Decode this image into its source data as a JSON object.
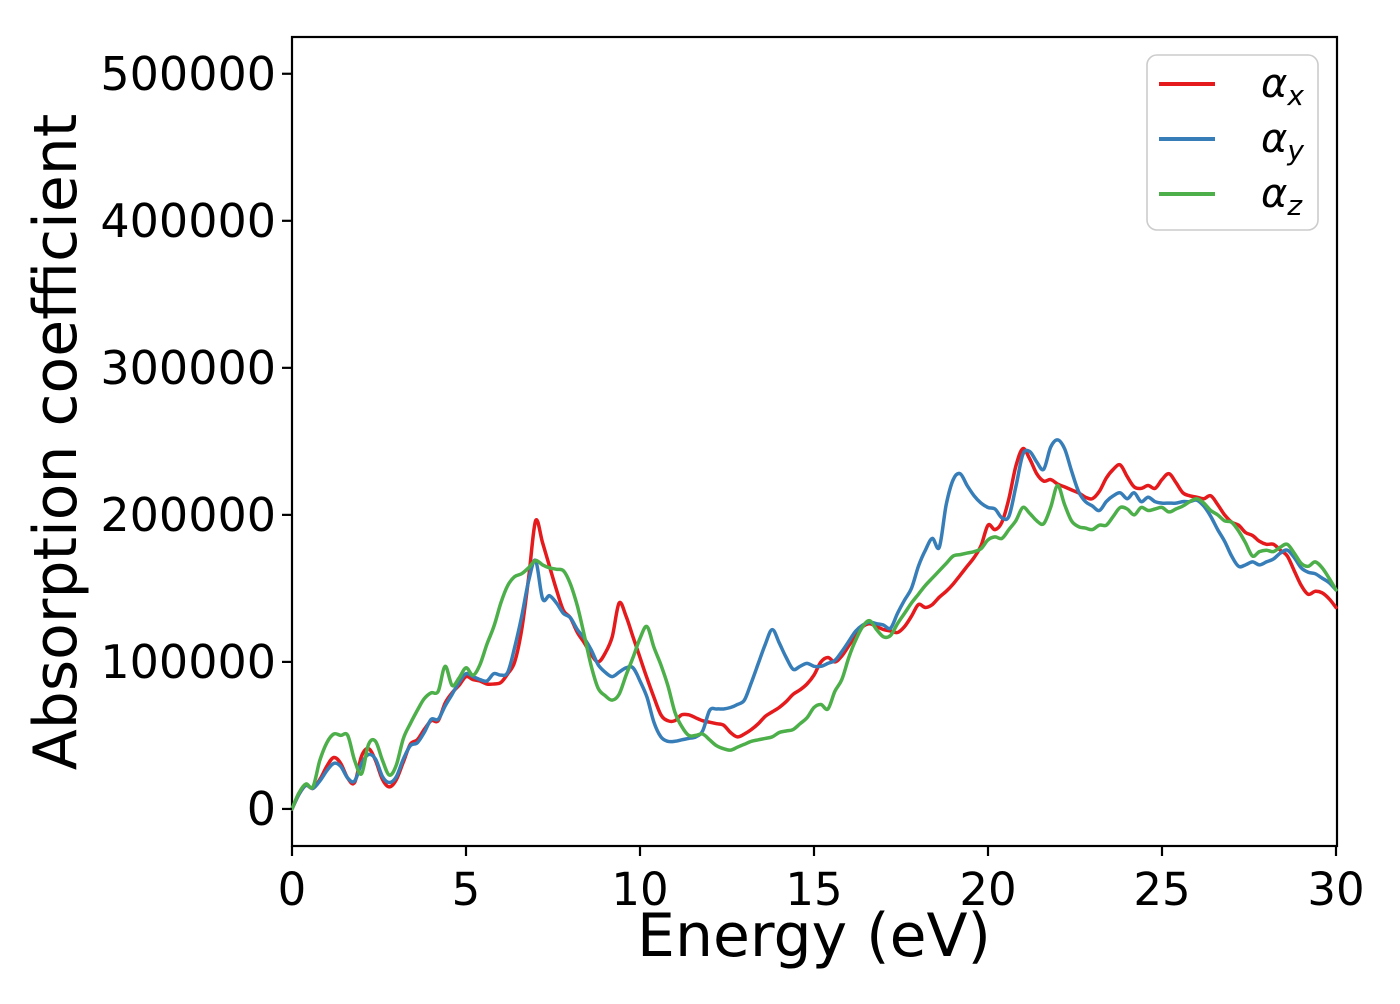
{
  "figure": {
    "background": "#ffffff",
    "spine_color": "#000000",
    "tick_color": "#000000",
    "text_color": "#000000"
  },
  "chart_data": {
    "type": "line",
    "title": "",
    "xlabel": "Energy (eV)",
    "ylabel": "Absorption coefficient",
    "xlim": [
      0,
      30
    ],
    "ylim": [
      -25200,
      525000
    ],
    "x_ticks": [
      0,
      5,
      10,
      15,
      20,
      25,
      30
    ],
    "y_ticks": [
      0,
      100000,
      200000,
      300000,
      400000,
      500000
    ],
    "grid": false,
    "legend": {
      "position": "upper right",
      "frame_color": "#cccccc",
      "entries": [
        {
          "symbol": "α",
          "sub": "x",
          "color": "#e41a1c"
        },
        {
          "symbol": "α",
          "sub": "y",
          "color": "#377eb8"
        },
        {
          "symbol": "α",
          "sub": "z",
          "color": "#4daf4a"
        }
      ]
    },
    "x_start": 0,
    "x_step": 0.2,
    "x": [
      0,
      0.2,
      0.4,
      0.6,
      0.8,
      1,
      1.2,
      1.4,
      1.6,
      1.8,
      2,
      2.2,
      2.4,
      2.6,
      2.8,
      3,
      3.2,
      3.4,
      3.6,
      3.8,
      4,
      4.2,
      4.4,
      4.6,
      4.8,
      5,
      5.2,
      5.4,
      5.6,
      5.8,
      6,
      6.2,
      6.4,
      6.6,
      6.8,
      7,
      7.2,
      7.4,
      7.6,
      7.8,
      8,
      8.2,
      8.4,
      8.6,
      8.8,
      9,
      9.2,
      9.4,
      9.6,
      9.8,
      10,
      10.2,
      10.4,
      10.6,
      10.8,
      11,
      11.2,
      11.4,
      11.6,
      11.8,
      12,
      12.2,
      12.4,
      12.6,
      12.8,
      13,
      13.2,
      13.4,
      13.6,
      13.8,
      14,
      14.2,
      14.4,
      14.6,
      14.8,
      15,
      15.2,
      15.4,
      15.6,
      15.8,
      16,
      16.2,
      16.4,
      16.6,
      16.8,
      17,
      17.2,
      17.4,
      17.6,
      17.8,
      18,
      18.2,
      18.4,
      18.6,
      18.8,
      19,
      19.2,
      19.4,
      19.6,
      19.8,
      20,
      20.2,
      20.4,
      20.6,
      20.8,
      21,
      21.2,
      21.4,
      21.6,
      21.8,
      22,
      22.2,
      22.4,
      22.6,
      22.8,
      23,
      23.2,
      23.4,
      23.6,
      23.8,
      24,
      24.2,
      24.4,
      24.6,
      24.8,
      25,
      25.2,
      25.4,
      25.6,
      25.8,
      26,
      26.2,
      26.4,
      26.6,
      26.8,
      27,
      27.2,
      27.4,
      27.6,
      27.8,
      28,
      28.2,
      28.4,
      28.6,
      28.8,
      29,
      29.2,
      29.4,
      29.6,
      29.8,
      30
    ],
    "series": [
      {
        "name": "alpha_x",
        "label": "αx",
        "color": "#e41a1c",
        "values": [
          0,
          10000,
          16000,
          14000,
          20000,
          29000,
          35000,
          31000,
          21000,
          18000,
          36000,
          41000,
          33000,
          20000,
          15000,
          20000,
          32000,
          44000,
          47000,
          54000,
          60000,
          60000,
          72000,
          79000,
          84000,
          90000,
          88000,
          87000,
          85000,
          85000,
          86000,
          92000,
          100000,
          122000,
          157000,
          196000,
          181000,
          165000,
          149000,
          135000,
          130000,
          120000,
          113000,
          105000,
          100000,
          106000,
          117000,
          140000,
          131000,
          117000,
          103000,
          89000,
          76000,
          64000,
          60000,
          60000,
          64000,
          64000,
          62000,
          60000,
          59000,
          58000,
          57000,
          52000,
          49000,
          51000,
          54000,
          58000,
          63000,
          66000,
          69000,
          73000,
          78000,
          81000,
          85000,
          91000,
          100000,
          103000,
          100000,
          104000,
          111000,
          118000,
          124000,
          126000,
          124000,
          122000,
          121000,
          120000,
          124000,
          131000,
          139000,
          137000,
          139000,
          144000,
          148000,
          153000,
          159000,
          165000,
          171000,
          179000,
          193000,
          190000,
          195000,
          211000,
          233000,
          245000,
          238000,
          228000,
          223000,
          224000,
          221000,
          219000,
          217000,
          215000,
          212000,
          211000,
          216000,
          225000,
          231000,
          234000,
          226000,
          219000,
          218000,
          220000,
          218000,
          224000,
          228000,
          222000,
          215000,
          213000,
          212000,
          211000,
          213000,
          207000,
          200000,
          195000,
          193000,
          188000,
          186000,
          182000,
          180000,
          180000,
          176000,
          172000,
          162000,
          152000,
          146000,
          148000,
          147000,
          143000,
          137000
        ]
      },
      {
        "name": "alpha_y",
        "label": "αy",
        "color": "#377eb8",
        "values": [
          0,
          10000,
          16000,
          14000,
          19000,
          26000,
          31000,
          29000,
          21000,
          19000,
          31000,
          37000,
          34000,
          22000,
          18000,
          22000,
          34000,
          43000,
          45000,
          52000,
          61000,
          61000,
          70000,
          78000,
          86000,
          92000,
          90000,
          88000,
          87000,
          92000,
          91000,
          93000,
          110000,
          131000,
          155000,
          169000,
          143000,
          145000,
          140000,
          133000,
          130000,
          122000,
          116000,
          108000,
          98000,
          93000,
          90000,
          93000,
          96000,
          96000,
          87000,
          76000,
          59000,
          49000,
          46000,
          46000,
          47000,
          48000,
          49000,
          53000,
          67000,
          68000,
          68000,
          69000,
          71000,
          74000,
          86000,
          99000,
          112000,
          122000,
          113000,
          103000,
          95000,
          97000,
          99000,
          97000,
          97000,
          99000,
          101000,
          107000,
          114000,
          121000,
          125000,
          127000,
          126000,
          125000,
          123000,
          133000,
          142000,
          150000,
          165000,
          176000,
          184000,
          178000,
          207000,
          224000,
          228000,
          220000,
          213000,
          208000,
          205000,
          204000,
          198000,
          199000,
          219000,
          241000,
          243000,
          236000,
          231000,
          246000,
          251000,
          245000,
          230000,
          216000,
          209000,
          206000,
          203000,
          209000,
          213000,
          215000,
          211000,
          215000,
          209000,
          212000,
          209000,
          208000,
          208000,
          208000,
          209000,
          209000,
          210000,
          206000,
          199000,
          190000,
          182000,
          172000,
          165000,
          166000,
          168000,
          166000,
          168000,
          170000,
          174000,
          176000,
          171000,
          164000,
          161000,
          160000,
          157000,
          154000,
          149000
        ]
      },
      {
        "name": "alpha_z",
        "label": "αz",
        "color": "#4daf4a",
        "values": [
          0,
          11000,
          17000,
          15000,
          33000,
          45000,
          51000,
          50000,
          50000,
          33000,
          24000,
          44000,
          46000,
          33000,
          23000,
          30000,
          48000,
          58000,
          67000,
          75000,
          79000,
          80000,
          97000,
          84000,
          89000,
          96000,
          91000,
          98000,
          112000,
          124000,
          140000,
          152000,
          158000,
          160000,
          164000,
          169000,
          166000,
          164000,
          163000,
          162000,
          153000,
          138000,
          118000,
          97000,
          82000,
          77000,
          74000,
          78000,
          91000,
          103000,
          116000,
          124000,
          110000,
          98000,
          84000,
          66000,
          56000,
          50000,
          50000,
          51000,
          47000,
          43000,
          41000,
          40000,
          42000,
          44000,
          46000,
          47000,
          48000,
          49000,
          52000,
          53000,
          54000,
          58000,
          62000,
          69000,
          71000,
          68000,
          80000,
          88000,
          103000,
          115000,
          124000,
          128000,
          122000,
          117000,
          118000,
          126000,
          133000,
          140000,
          146000,
          152000,
          157000,
          162000,
          167000,
          172000,
          173000,
          174000,
          175000,
          177000,
          183000,
          185000,
          184000,
          190000,
          196000,
          205000,
          201000,
          196000,
          194000,
          205000,
          220000,
          207000,
          196000,
          192000,
          191000,
          190000,
          193000,
          193000,
          199000,
          205000,
          204000,
          200000,
          205000,
          203000,
          204000,
          205000,
          202000,
          204000,
          206000,
          209000,
          211000,
          208000,
          203000,
          200000,
          196000,
          195000,
          189000,
          181000,
          172000,
          175000,
          176000,
          175000,
          178000,
          180000,
          174000,
          167000,
          165000,
          168000,
          164000,
          157000,
          149000
        ]
      }
    ]
  }
}
